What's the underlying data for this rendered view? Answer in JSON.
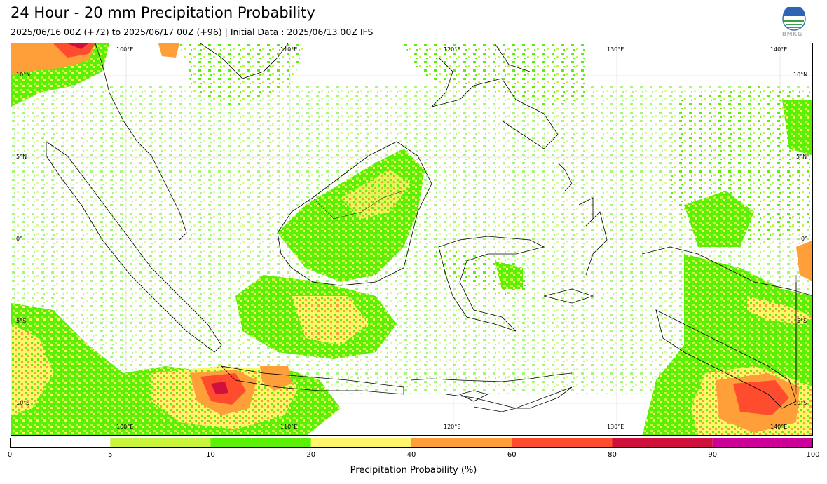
{
  "header": {
    "title": "24 Hour - 20 mm Precipitation Probability",
    "subtitle": "2025/06/16 00Z (+72) to 2025/06/17 00Z (+96) | Initial Data : 2025/06/13 00Z IFS"
  },
  "logo": {
    "text": "BMKG",
    "icon": "bmkg-logo-icon"
  },
  "map": {
    "lon_labels": [
      "100°E",
      "110°E",
      "120°E",
      "130°E",
      "140°E"
    ],
    "lat_labels_left": [
      "10°N",
      "5°N",
      "0°",
      "5°S",
      "10°S"
    ],
    "lat_labels_right": [
      "10°N",
      "5°N",
      "0°",
      "5°S",
      "10°S"
    ],
    "lon_range": [
      94,
      143
    ],
    "lat_range": [
      -12,
      12
    ],
    "grid": true
  },
  "colorbar": {
    "label": "Precipitation Probability (%)",
    "ticks": [
      "0",
      "5",
      "10",
      "20",
      "40",
      "60",
      "80",
      "90",
      "100"
    ],
    "colors": [
      "#ffffff",
      "#c8f53c",
      "#5af008",
      "#fff56a",
      "#ff9f3a",
      "#ff4b2e",
      "#d0103c",
      "#cc0099"
    ]
  }
}
